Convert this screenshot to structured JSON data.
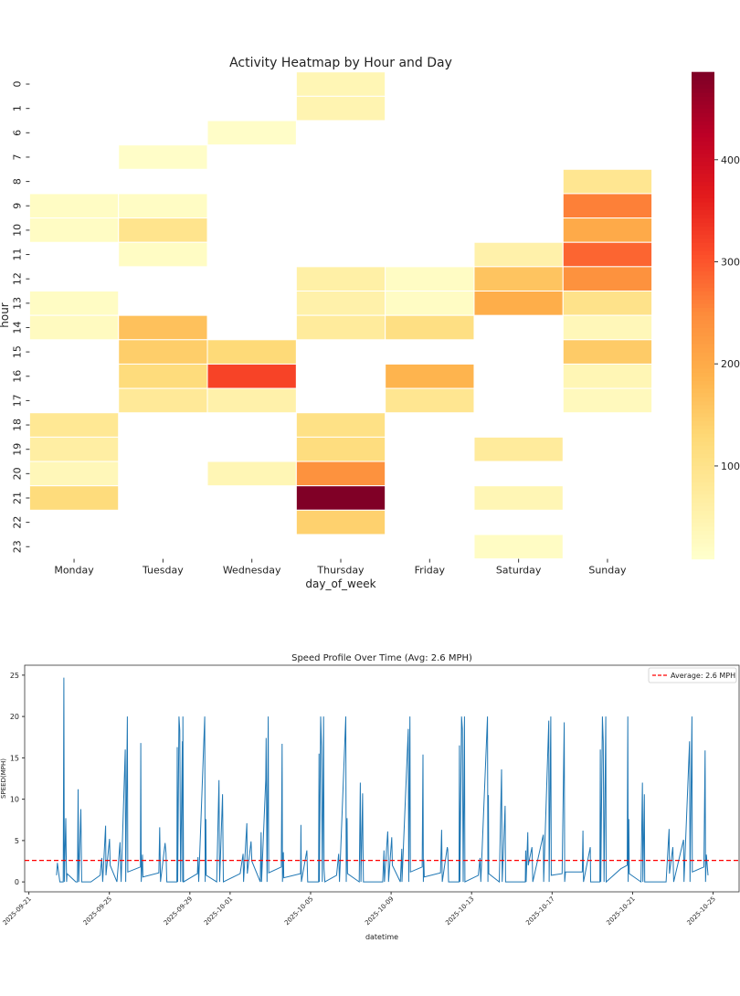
{
  "chart_data": [
    {
      "type": "heatmap",
      "title": "Activity Heatmap by Hour and Day",
      "xlabel": "day_of_week",
      "ylabel": "hour",
      "colormap": "YlOrRd",
      "color_range": [
        9,
        486
      ],
      "colorbar_ticks": [
        100,
        200,
        300,
        400
      ],
      "columns": [
        "Monday",
        "Tuesday",
        "Wednesday",
        "Thursday",
        "Friday",
        "Saturday",
        "Sunday"
      ],
      "rows": [
        "0",
        "1",
        "6",
        "7",
        "8",
        "9",
        "10",
        "11",
        "12",
        "13",
        "14",
        "15",
        "16",
        "17",
        "18",
        "19",
        "20",
        "21",
        "22",
        "23"
      ],
      "values": [
        [
          null,
          null,
          null,
          40,
          null,
          null,
          null
        ],
        [
          null,
          null,
          null,
          45,
          null,
          null,
          null
        ],
        [
          null,
          null,
          15,
          null,
          null,
          null,
          null
        ],
        [
          null,
          15,
          null,
          null,
          null,
          null,
          null
        ],
        [
          null,
          null,
          null,
          null,
          null,
          null,
          90
        ],
        [
          20,
          20,
          null,
          null,
          null,
          null,
          260
        ],
        [
          20,
          95,
          null,
          null,
          null,
          null,
          200
        ],
        [
          null,
          20,
          null,
          null,
          null,
          55,
          285
        ],
        [
          null,
          null,
          null,
          60,
          20,
          160,
          240
        ],
        [
          20,
          null,
          null,
          55,
          20,
          195,
          100
        ],
        [
          25,
          165,
          null,
          75,
          110,
          null,
          35
        ],
        [
          null,
          145,
          125,
          null,
          null,
          null,
          150
        ],
        [
          null,
          120,
          320,
          null,
          185,
          null,
          40
        ],
        [
          null,
          80,
          55,
          null,
          90,
          null,
          30
        ],
        [
          85,
          null,
          null,
          105,
          null,
          null,
          null
        ],
        [
          65,
          null,
          null,
          115,
          null,
          75,
          null
        ],
        [
          35,
          null,
          40,
          240,
          null,
          null,
          null
        ],
        [
          120,
          null,
          null,
          486,
          null,
          40,
          null
        ],
        [
          null,
          null,
          null,
          140,
          null,
          null,
          null
        ],
        [
          null,
          null,
          null,
          null,
          null,
          20,
          null
        ]
      ]
    },
    {
      "type": "line",
      "title": "Speed Profile Over Time (Avg: 2.6 MPH)",
      "xlabel": "datetime",
      "ylabel": "SPEED(MPH)",
      "xlim": [
        "2025-09-20 19:00",
        "2025-10-26 07:00"
      ],
      "ylim": [
        -1.2,
        26.2
      ],
      "xticks": [
        "2025-09-21",
        "2025-09-25",
        "2025-09-29",
        "2025-10-01",
        "2025-10-05",
        "2025-10-09",
        "2025-10-13",
        "2025-10-17",
        "2025-10-21",
        "2025-10-25"
      ],
      "yticks": [
        0,
        5,
        10,
        15,
        20,
        25
      ],
      "line_color": "#1f77b4",
      "average": {
        "value": 2.6,
        "label": "Average: 2.6 MPH",
        "color": "#ff0000",
        "style": "dashed"
      },
      "legend_position": "top-right",
      "points": [
        [
          "2025-09-22 09:00",
          0.8
        ],
        [
          "2025-09-22 10:00",
          2.3
        ],
        [
          "2025-09-22 13:00",
          0
        ],
        [
          "2025-09-22 17:00",
          0
        ],
        [
          "2025-09-22 17:45",
          24.7
        ],
        [
          "2025-09-22 18:15",
          0
        ],
        [
          "2025-09-22 20:00",
          7.7
        ],
        [
          "2025-09-22 20:30",
          3.8
        ],
        [
          "2025-09-22 21:00",
          0
        ],
        [
          "2025-09-22 21:30",
          1.0
        ],
        [
          "2025-09-23 08:00",
          0
        ],
        [
          "2025-09-23 10:00",
          0
        ],
        [
          "2025-09-23 10:45",
          11.2
        ],
        [
          "2025-09-23 11:30",
          0
        ],
        [
          "2025-09-23 14:00",
          8.8
        ],
        [
          "2025-09-23 14:30",
          4.2
        ],
        [
          "2025-09-23 15:00",
          0
        ],
        [
          "2025-09-24 02:00",
          0
        ],
        [
          "2025-09-24 13:00",
          0.8
        ],
        [
          "2025-09-24 15:00",
          2.9
        ],
        [
          "2025-09-24 16:00",
          0
        ],
        [
          "2025-09-24 19:30",
          6.8
        ],
        [
          "2025-09-24 20:00",
          0.8
        ],
        [
          "2025-09-25 00:15",
          5.2
        ],
        [
          "2025-09-25 01:00",
          2.0
        ],
        [
          "2025-09-25 09:00",
          0
        ],
        [
          "2025-09-25 12:45",
          4.8
        ],
        [
          "2025-09-25 13:15",
          2.3
        ],
        [
          "2025-09-25 14:00",
          0
        ],
        [
          "2025-09-25 19:00",
          16.0
        ],
        [
          "2025-09-25 19:30",
          0
        ],
        [
          "2025-09-25 21:30",
          20.0
        ],
        [
          "2025-09-25 22:00",
          1.2
        ],
        [
          "2025-09-26 13:00",
          1.8
        ],
        [
          "2025-09-26 13:30",
          16.8
        ],
        [
          "2025-09-26 14:00",
          0
        ],
        [
          "2025-09-26 15:30",
          3.3
        ],
        [
          "2025-09-26 16:00",
          0.6
        ],
        [
          "2025-09-27 11:00",
          1.1
        ],
        [
          "2025-09-27 12:00",
          6.6
        ],
        [
          "2025-09-27 13:00",
          0
        ],
        [
          "2025-09-27 18:30",
          4.7
        ],
        [
          "2025-09-27 19:30",
          3.5
        ],
        [
          "2025-09-27 20:30",
          0
        ],
        [
          "2025-09-28 08:30",
          0
        ],
        [
          "2025-09-28 09:00",
          16.3
        ],
        [
          "2025-09-28 09:30",
          0
        ],
        [
          "2025-09-28 11:00",
          20.0
        ],
        [
          "2025-09-28 12:00",
          18.3
        ],
        [
          "2025-09-28 13:00",
          0
        ],
        [
          "2025-09-28 15:00",
          17.0
        ],
        [
          "2025-09-28 15:30",
          0
        ],
        [
          "2025-09-28 15:45",
          20.0
        ],
        [
          "2025-09-28 16:30",
          0
        ],
        [
          "2025-09-29 09:00",
          1.0
        ],
        [
          "2025-09-29 09:40",
          3.0
        ],
        [
          "2025-09-29 10:30",
          0
        ],
        [
          "2025-09-29 17:45",
          20.0
        ],
        [
          "2025-09-29 18:15",
          0
        ],
        [
          "2025-09-29 19:00",
          7.6
        ],
        [
          "2025-09-29 19:30",
          0.8
        ],
        [
          "2025-09-30 08:00",
          0
        ],
        [
          "2025-09-30 10:45",
          12.3
        ],
        [
          "2025-09-30 11:30",
          0
        ],
        [
          "2025-09-30 15:00",
          10.6
        ],
        [
          "2025-09-30 15:30",
          4.5
        ],
        [
          "2025-09-30 16:00",
          0
        ],
        [
          "2025-10-01 12:00",
          1.0
        ],
        [
          "2025-10-01 15:30",
          3.4
        ],
        [
          "2025-10-01 16:00",
          0
        ],
        [
          "2025-10-01 20:00",
          7.1
        ],
        [
          "2025-10-01 20:30",
          1.0
        ],
        [
          "2025-10-02 01:00",
          4.9
        ],
        [
          "2025-10-02 02:00",
          2.5
        ],
        [
          "2025-10-02 12:00",
          0
        ],
        [
          "2025-10-02 13:00",
          6.0
        ],
        [
          "2025-10-02 13:30",
          0
        ],
        [
          "2025-10-02 18:30",
          12.4
        ],
        [
          "2025-10-02 19:00",
          17.4
        ],
        [
          "2025-10-02 20:00",
          0
        ],
        [
          "2025-10-02 21:30",
          20.0
        ],
        [
          "2025-10-02 22:00",
          1.1
        ],
        [
          "2025-10-03 13:00",
          1.8
        ],
        [
          "2025-10-03 14:00",
          16.7
        ],
        [
          "2025-10-03 14:30",
          0
        ],
        [
          "2025-10-03 15:30",
          3.6
        ],
        [
          "2025-10-03 16:00",
          0.5
        ],
        [
          "2025-10-04 12:00",
          1.0
        ],
        [
          "2025-10-04 12:30",
          6.9
        ],
        [
          "2025-10-04 13:00",
          0
        ],
        [
          "2025-10-04 19:30",
          3.8
        ],
        [
          "2025-10-04 20:30",
          0
        ],
        [
          "2025-10-05 09:30",
          0
        ],
        [
          "2025-10-05 10:00",
          15.5
        ],
        [
          "2025-10-05 10:30",
          0
        ],
        [
          "2025-10-05 12:00",
          20.0
        ],
        [
          "2025-10-05 13:00",
          16.4
        ],
        [
          "2025-10-05 14:00",
          0
        ],
        [
          "2025-10-05 15:30",
          20.0
        ],
        [
          "2025-10-05 16:00",
          1.6
        ],
        [
          "2025-10-05 17:00",
          0
        ],
        [
          "2025-10-06 07:00",
          0.8
        ],
        [
          "2025-10-06 09:30",
          3.4
        ],
        [
          "2025-10-06 10:30",
          0
        ],
        [
          "2025-10-06 18:00",
          20.0
        ],
        [
          "2025-10-06 18:30",
          0
        ],
        [
          "2025-10-06 19:30",
          7.7
        ],
        [
          "2025-10-06 20:00",
          1.0
        ],
        [
          "2025-10-07 10:00",
          0
        ],
        [
          "2025-10-07 11:15",
          12.0
        ],
        [
          "2025-10-07 12:00",
          0
        ],
        [
          "2025-10-07 14:00",
          10.7
        ],
        [
          "2025-10-07 14:30",
          4.5
        ],
        [
          "2025-10-07 15:00",
          0
        ],
        [
          "2025-10-08 14:00",
          0
        ],
        [
          "2025-10-08 15:30",
          3.8
        ],
        [
          "2025-10-08 16:00",
          0
        ],
        [
          "2025-10-08 20:00",
          6.1
        ],
        [
          "2025-10-08 20:30",
          4.2
        ],
        [
          "2025-10-08 21:00",
          0
        ],
        [
          "2025-10-09 00:45",
          5.4
        ],
        [
          "2025-10-09 01:30",
          2.0
        ],
        [
          "2025-10-09 11:00",
          0
        ],
        [
          "2025-10-09 12:45",
          4.0
        ],
        [
          "2025-10-09 13:00",
          0
        ],
        [
          "2025-10-09 20:30",
          18.5
        ],
        [
          "2025-10-09 21:00",
          0
        ],
        [
          "2025-10-09 22:30",
          20.0
        ],
        [
          "2025-10-09 23:00",
          1.2
        ],
        [
          "2025-10-10 13:00",
          1.8
        ],
        [
          "2025-10-10 14:00",
          15.4
        ],
        [
          "2025-10-10 14:30",
          0
        ],
        [
          "2025-10-10 15:00",
          2.7
        ],
        [
          "2025-10-10 15:30",
          0.6
        ],
        [
          "2025-10-11 11:00",
          1.1
        ],
        [
          "2025-10-11 12:15",
          6.3
        ],
        [
          "2025-10-11 13:00",
          0
        ],
        [
          "2025-10-11 19:00",
          4.2
        ],
        [
          "2025-10-11 19:30",
          3.9
        ],
        [
          "2025-10-11 20:30",
          0
        ],
        [
          "2025-10-12 09:00",
          0
        ],
        [
          "2025-10-12 09:30",
          16.5
        ],
        [
          "2025-10-12 10:00",
          0
        ],
        [
          "2025-10-12 12:00",
          20.0
        ],
        [
          "2025-10-12 13:00",
          18.5
        ],
        [
          "2025-10-12 14:00",
          0
        ],
        [
          "2025-10-12 15:30",
          20.0
        ],
        [
          "2025-10-12 16:00",
          0
        ],
        [
          "2025-10-13 08:00",
          0.8
        ],
        [
          "2025-10-13 10:00",
          2.9
        ],
        [
          "2025-10-13 11:00",
          0
        ],
        [
          "2025-10-13 19:00",
          20.0
        ],
        [
          "2025-10-13 19:30",
          0
        ],
        [
          "2025-10-13 20:00",
          10.5
        ],
        [
          "2025-10-13 20:30",
          1.0
        ],
        [
          "2025-10-14 09:00",
          0
        ],
        [
          "2025-10-14 11:45",
          13.6
        ],
        [
          "2025-10-14 12:30",
          0
        ],
        [
          "2025-10-14 16:00",
          9.2
        ],
        [
          "2025-10-14 16:30",
          0
        ],
        [
          "2025-10-15 16:00",
          0
        ],
        [
          "2025-10-15 16:30",
          3.8
        ],
        [
          "2025-10-15 17:00",
          0
        ],
        [
          "2025-10-15 19:00",
          6.0
        ],
        [
          "2025-10-15 19:30",
          2.0
        ],
        [
          "2025-10-16 00:00",
          4.2
        ],
        [
          "2025-10-16 01:00",
          0
        ],
        [
          "2025-10-16 13:30",
          5.7
        ],
        [
          "2025-10-16 14:00",
          0
        ],
        [
          "2025-10-16 20:00",
          19.5
        ],
        [
          "2025-10-16 20:30",
          0
        ],
        [
          "2025-10-16 22:30",
          20.0
        ],
        [
          "2025-10-16 23:00",
          0.8
        ],
        [
          "2025-10-17 12:00",
          1.0
        ],
        [
          "2025-10-17 14:30",
          19.3
        ],
        [
          "2025-10-17 15:00",
          0
        ],
        [
          "2025-10-17 16:00",
          1.2
        ],
        [
          "2025-10-18 12:00",
          1.2
        ],
        [
          "2025-10-18 12:45",
          6.2
        ],
        [
          "2025-10-18 13:30",
          0
        ],
        [
          "2025-10-18 21:30",
          4.2
        ],
        [
          "2025-10-18 22:00",
          0
        ],
        [
          "2025-10-19 09:00",
          0
        ],
        [
          "2025-10-19 09:30",
          16.0
        ],
        [
          "2025-10-19 10:00",
          0
        ],
        [
          "2025-10-19 12:00",
          20.0
        ],
        [
          "2025-10-19 13:00",
          17.0
        ],
        [
          "2025-10-19 14:00",
          0
        ],
        [
          "2025-10-19 16:00",
          20.0
        ],
        [
          "2025-10-19 16:30",
          0
        ],
        [
          "2025-10-20 10:00",
          1.6
        ],
        [
          "2025-10-20 17:30",
          2.0
        ],
        [
          "2025-10-20 18:15",
          20.0
        ],
        [
          "2025-10-20 18:45",
          0
        ],
        [
          "2025-10-20 19:30",
          7.6
        ],
        [
          "2025-10-20 20:00",
          1.0
        ],
        [
          "2025-10-21 10:00",
          0
        ],
        [
          "2025-10-21 11:45",
          12.0
        ],
        [
          "2025-10-21 12:15",
          0
        ],
        [
          "2025-10-21 14:00",
          10.6
        ],
        [
          "2025-10-21 14:30",
          0
        ],
        [
          "2025-10-22 16:00",
          0
        ],
        [
          "2025-10-22 19:30",
          6.4
        ],
        [
          "2025-10-22 20:00",
          1.0
        ],
        [
          "2025-10-23 00:00",
          4.2
        ],
        [
          "2025-10-23 01:00",
          0
        ],
        [
          "2025-10-23 12:45",
          5.1
        ],
        [
          "2025-10-23 13:15",
          0
        ],
        [
          "2025-10-23 20:00",
          17.0
        ],
        [
          "2025-10-23 20:30",
          0
        ],
        [
          "2025-10-23 22:45",
          20.0
        ],
        [
          "2025-10-23 23:15",
          1.2
        ],
        [
          "2025-10-24 13:00",
          1.8
        ],
        [
          "2025-10-24 14:30",
          15.9
        ],
        [
          "2025-10-24 15:00",
          0
        ],
        [
          "2025-10-24 16:00",
          3.3
        ],
        [
          "2025-10-24 18:00",
          0.8
        ]
      ]
    }
  ]
}
